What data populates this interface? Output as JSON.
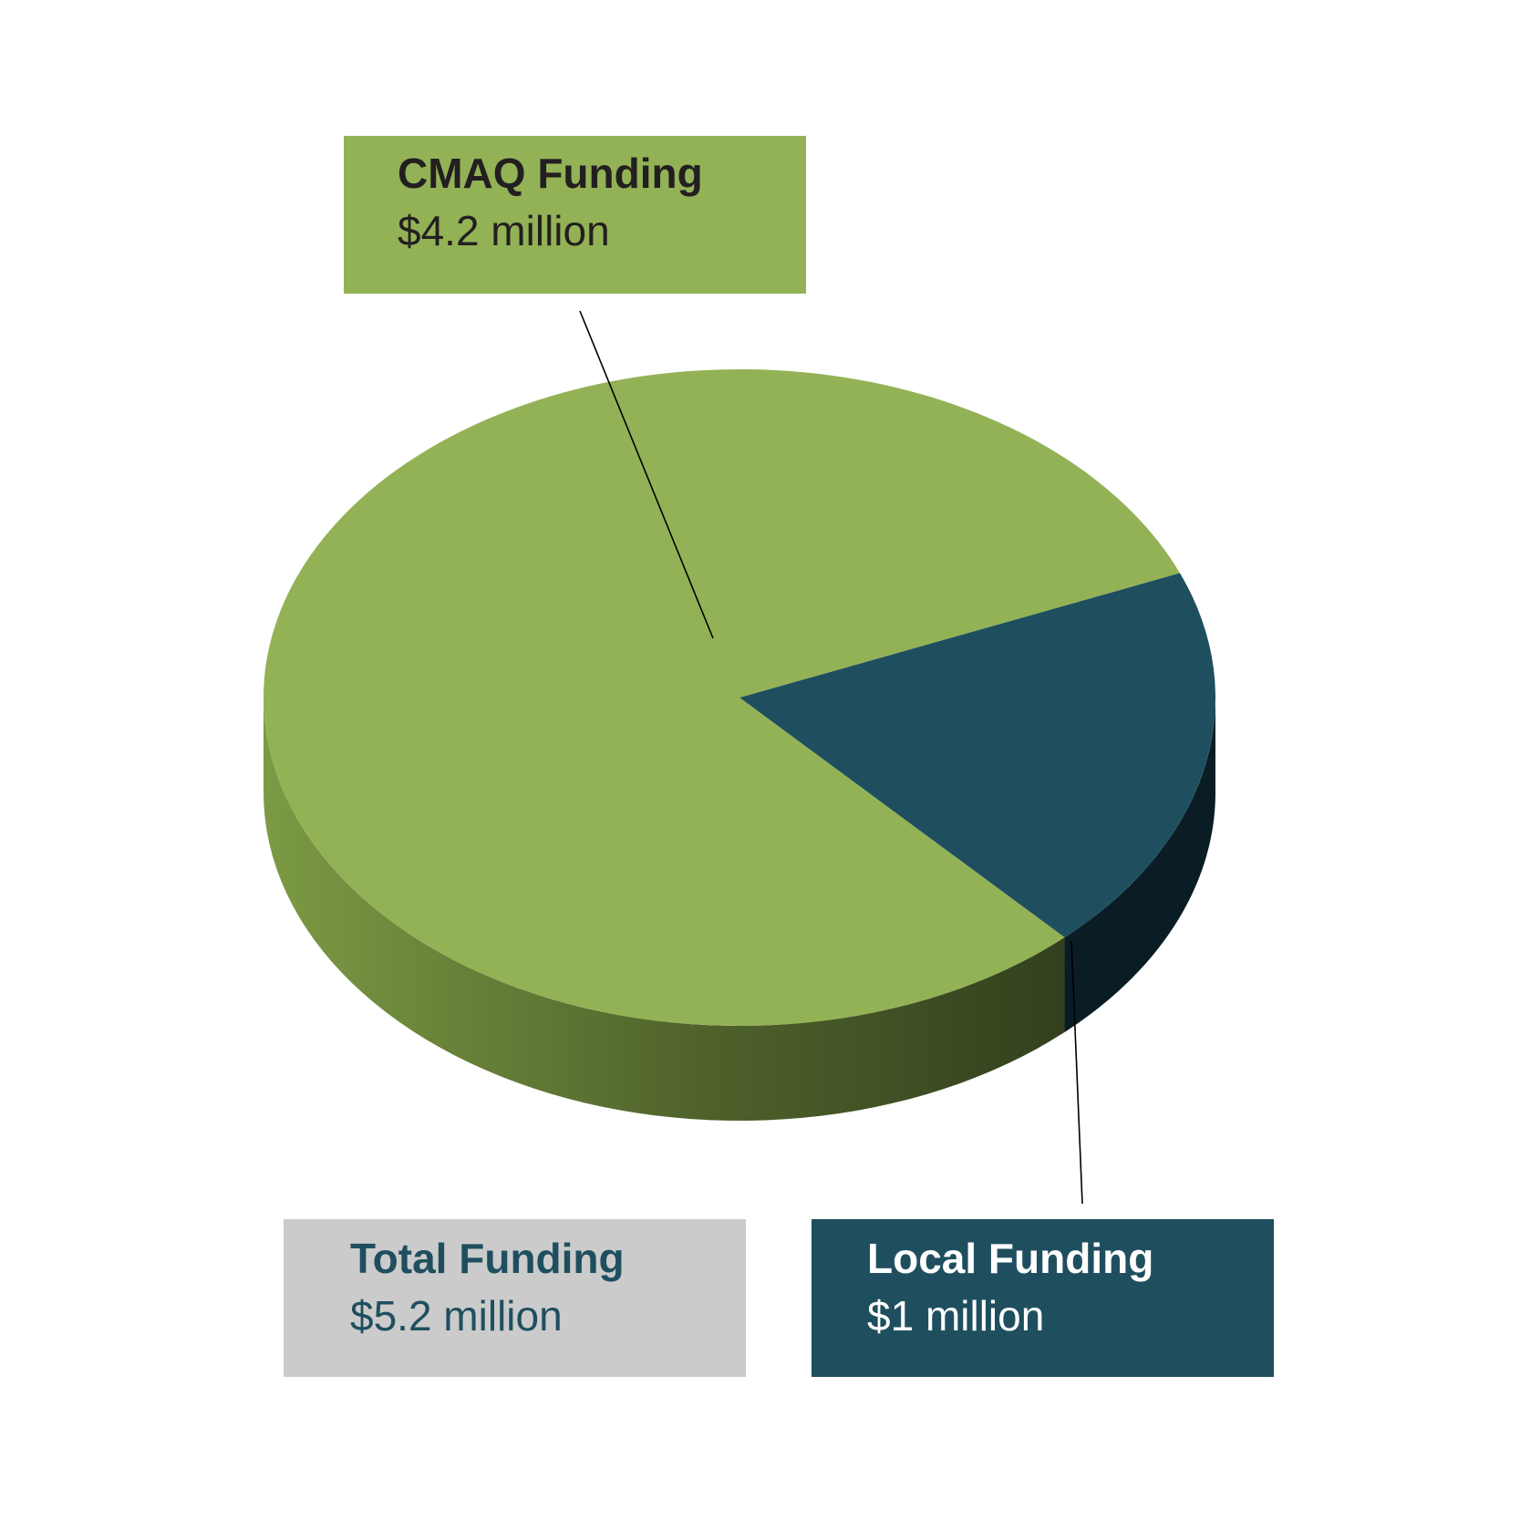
{
  "chart_data": {
    "type": "pie",
    "style": "3d",
    "units": "million",
    "slices": [
      {
        "id": "cmaq",
        "label": "CMAQ Funding",
        "value": 4.2,
        "value_text": "$4.2 million",
        "color": "#93b256",
        "side_color_light": "#7c9a44",
        "side_color_dark": "#33401e"
      },
      {
        "id": "local",
        "label": "Local Funding",
        "value": 1.0,
        "value_text": "$1 million",
        "color": "#1f4f5f",
        "side_color_light": "#12323d",
        "side_color_dark": "#0a1d24"
      }
    ],
    "total": {
      "label": "Total Funding",
      "value": 5.2,
      "value_text": "$5.2 million",
      "color": "#cbcbcb"
    }
  },
  "callouts": {
    "cmaq": {
      "title": "CMAQ Funding",
      "amount": "$4.2 million",
      "bg": "#93b256",
      "fg": "#231f20"
    },
    "total": {
      "title": "Total Funding",
      "amount": "$5.2 million",
      "bg": "#cbcbcb",
      "fg": "#1f4f5f"
    },
    "local": {
      "title": "Local Funding",
      "amount": "$1 million",
      "bg": "#1f4f5f",
      "fg": "#ffffff"
    }
  },
  "leader_line_color": "#000000"
}
